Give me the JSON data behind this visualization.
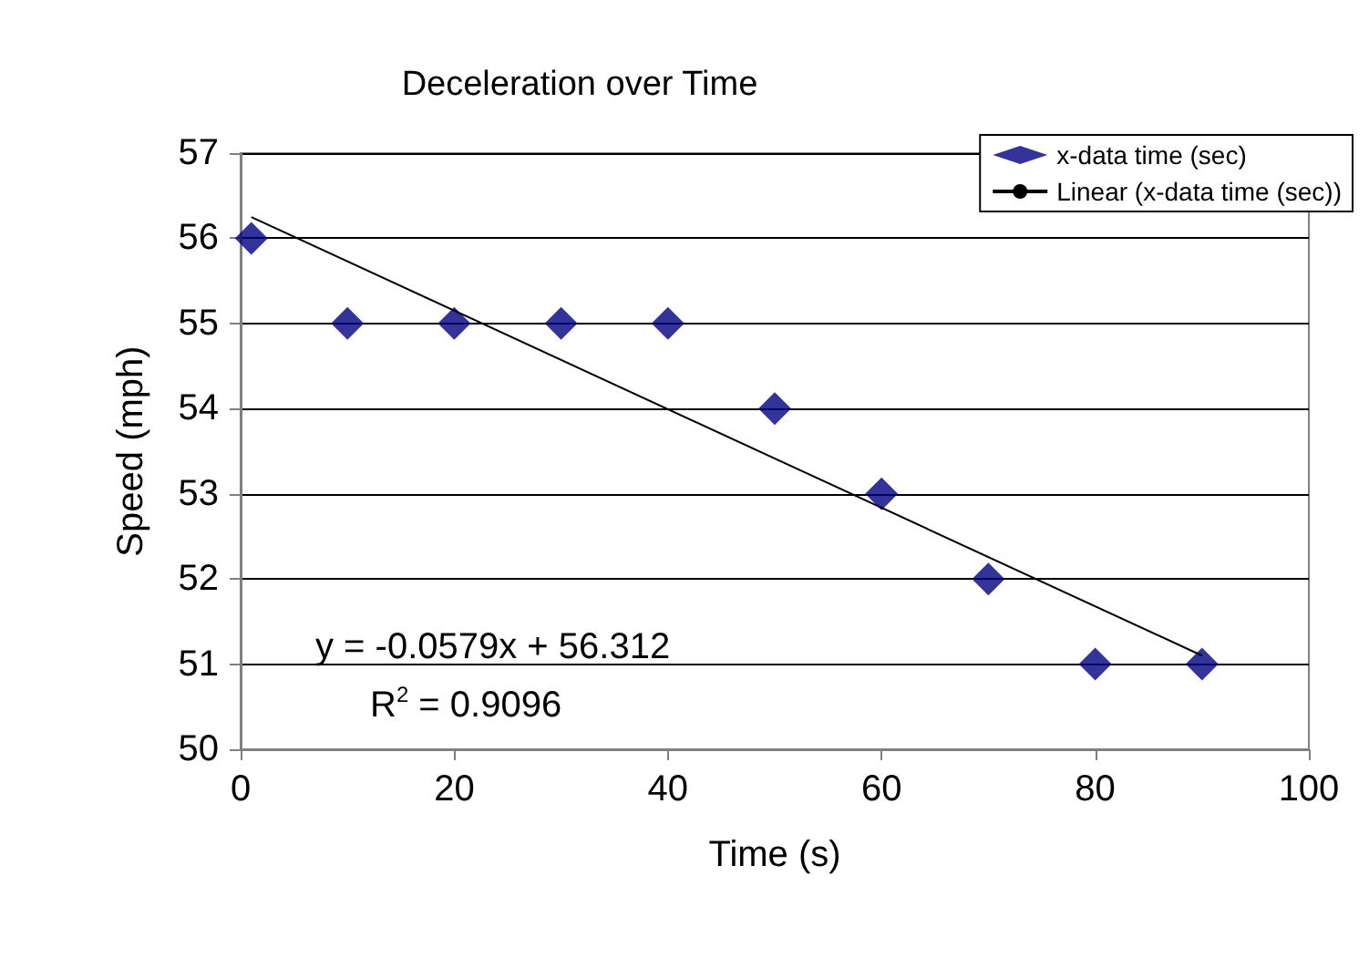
{
  "chart_data": {
    "type": "scatter",
    "title": "Deceleration over Time",
    "xlabel": "Time (s)",
    "ylabel": "Speed (mph)",
    "annotations": [
      "y = -0.0579x + 56.312",
      "R$^{2}$ = 0.9096"
    ],
    "series": [
      {
        "name": "x-data time (sec)",
        "color": "#000080",
        "marker": "diamond",
        "x": [
          1,
          10,
          20,
          30,
          40,
          50,
          60,
          70,
          80,
          90
        ],
        "values": [
          56,
          55,
          55,
          55,
          55,
          54,
          53,
          52,
          51,
          51
        ]
      },
      {
        "name": "Linear (x-data time (sec))",
        "type": "line",
        "color": "#000000",
        "marker": "none",
        "line_style": "solid",
        "x": [
          1,
          90
        ],
        "values": [
          56.25,
          51.1
        ]
      }
    ],
    "xlim": [
      0,
      100
    ],
    "xticks": [
      0,
      20,
      40,
      60,
      80,
      100
    ],
    "ylim": [
      50,
      57
    ],
    "yticks": [
      50,
      51,
      52,
      53,
      54,
      55,
      56,
      57
    ],
    "grid": "y",
    "legend": "top right"
  }
}
